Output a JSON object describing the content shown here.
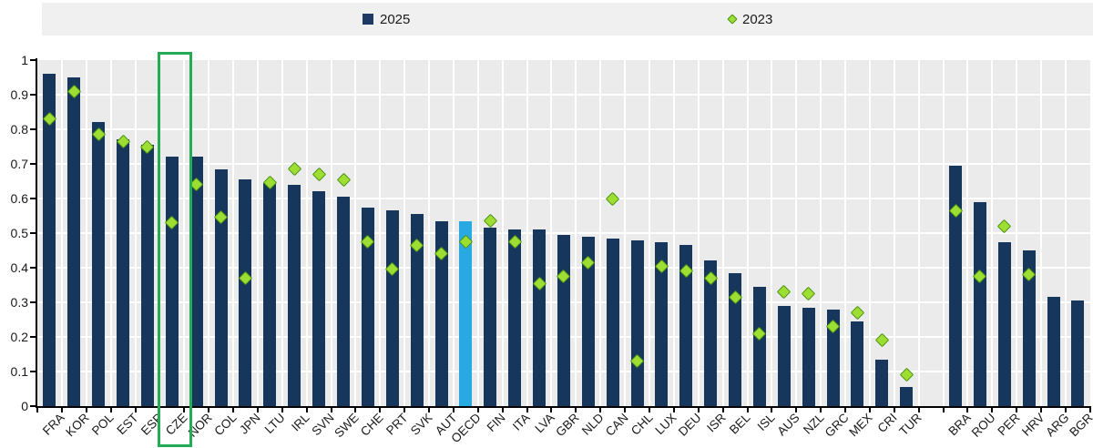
{
  "legend": {
    "items": [
      {
        "label": "2025",
        "marker": "square"
      },
      {
        "label": "2023",
        "marker": "diamond"
      }
    ]
  },
  "y_axis": {
    "tick_labels": [
      "1",
      "0.9",
      "0.8",
      "0.7",
      "0.6",
      "0.5",
      "0.4",
      "0.3",
      "0.2",
      "0.1",
      "0"
    ]
  },
  "chart_data": {
    "type": "bar",
    "title": "",
    "xlabel": "",
    "ylabel": "",
    "ylim": [
      0,
      1
    ],
    "ytick_step": 0.1,
    "grid": true,
    "legend_position": "top",
    "categories": [
      "FRA",
      "KOR",
      "POL",
      "EST",
      "ESP",
      "CZE",
      "NOR",
      "COL",
      "JPN",
      "LTU",
      "IRL",
      "SVN",
      "SWE",
      "CHE",
      "PRT",
      "SVK",
      "AUT",
      "OECD",
      "FIN",
      "ITA",
      "LVA",
      "GBR",
      "NLD",
      "CAN",
      "CHL",
      "LUX",
      "DEU",
      "ISR",
      "BEL",
      "ISL",
      "AUS",
      "NZL",
      "GRC",
      "MEX",
      "CRI",
      "TUR",
      "BRA",
      "ROU",
      "PER",
      "HRV",
      "ARG",
      "BGR"
    ],
    "series": [
      {
        "name": "2025",
        "type": "bar",
        "values": [
          0.96,
          0.95,
          0.82,
          0.77,
          0.755,
          0.72,
          0.72,
          0.685,
          0.655,
          0.645,
          0.64,
          0.62,
          0.605,
          0.575,
          0.565,
          0.555,
          0.535,
          0.535,
          0.515,
          0.51,
          0.51,
          0.495,
          0.49,
          0.485,
          0.48,
          0.475,
          0.465,
          0.42,
          0.385,
          0.345,
          0.29,
          0.285,
          0.28,
          0.245,
          0.135,
          0.055,
          0.695,
          0.59,
          0.475,
          0.45,
          0.315,
          0.305
        ]
      },
      {
        "name": "2023",
        "type": "scatter",
        "values": [
          0.83,
          0.91,
          0.785,
          0.765,
          0.75,
          0.53,
          0.64,
          0.545,
          0.37,
          0.645,
          0.685,
          0.67,
          0.655,
          0.475,
          0.395,
          0.465,
          0.44,
          0.475,
          0.535,
          0.475,
          0.355,
          0.375,
          0.415,
          0.6,
          0.13,
          0.405,
          0.39,
          0.37,
          0.315,
          0.21,
          0.33,
          0.325,
          0.23,
          0.27,
          0.19,
          0.09,
          0.565,
          0.375,
          0.52,
          0.38,
          null,
          null
        ]
      }
    ],
    "gap_after_category": "TUR",
    "highlighted_category": "CZE",
    "special_bars": {
      "OECD": "#29a9e1"
    },
    "colors": {
      "bar": "#16365c",
      "scatter_fill": "#9edd31",
      "scatter_stroke": "#4b9416",
      "highlight_box": "#23ab55",
      "plot_bg": "#ebebeb",
      "gridline": "#ffffff",
      "legend_bg": "#f0f0f0",
      "axis": "#000000"
    }
  }
}
